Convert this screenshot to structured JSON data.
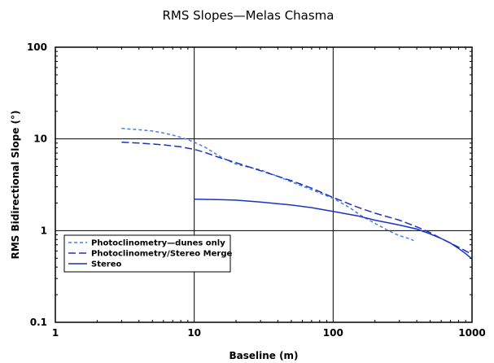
{
  "chart_data": {
    "type": "line",
    "title": "RMS Slopes—Melas Chasma",
    "xlabel": "Baseline (m)",
    "ylabel": "RMS Bidirectional Slope (°)",
    "xscale": "log",
    "yscale": "log",
    "xlim": [
      1,
      1000
    ],
    "ylim": [
      0.1,
      100
    ],
    "xticks": [
      "1",
      "10",
      "100",
      "1000"
    ],
    "yticks": [
      "0.1",
      "1",
      "10",
      "100"
    ],
    "grid": true,
    "legend_position": "lower-left",
    "series": [
      {
        "name": "Photoclinometry—dunes only",
        "color": "#4a7fe6",
        "style": "dotted-dash",
        "x": [
          3,
          4,
          5,
          6,
          7,
          8,
          9,
          10,
          12,
          14,
          16,
          20,
          25,
          30,
          40,
          50,
          70,
          100,
          130,
          160,
          200,
          250,
          300,
          350,
          380
        ],
        "y": [
          13,
          12.6,
          12.2,
          11.6,
          11,
          10.4,
          9.8,
          9.2,
          8.1,
          7,
          6.2,
          5.3,
          4.9,
          4.6,
          3.9,
          3.4,
          2.8,
          2.25,
          1.8,
          1.45,
          1.2,
          1.0,
          0.88,
          0.82,
          0.78
        ]
      },
      {
        "name": "Photoclinometry/Stereo Merge",
        "color": "#1a33c4",
        "style": "dash",
        "x": [
          3,
          4,
          5,
          6,
          8,
          10,
          12,
          15,
          20,
          30,
          40,
          50,
          70,
          100,
          150,
          200,
          300,
          400,
          500,
          600,
          800,
          1000
        ],
        "y": [
          9.2,
          9.0,
          8.8,
          8.6,
          8.2,
          7.7,
          7.1,
          6.3,
          5.5,
          4.5,
          3.9,
          3.5,
          2.9,
          2.3,
          1.8,
          1.55,
          1.3,
          1.1,
          0.95,
          0.82,
          0.66,
          0.55
        ]
      },
      {
        "name": "Stereo",
        "color": "#1a33c4",
        "style": "solid",
        "x": [
          10,
          15,
          20,
          30,
          50,
          70,
          100,
          150,
          200,
          300,
          400,
          500,
          600,
          700,
          800,
          900,
          1000
        ],
        "y": [
          2.2,
          2.18,
          2.15,
          2.05,
          1.9,
          1.78,
          1.62,
          1.45,
          1.3,
          1.15,
          1.04,
          0.92,
          0.82,
          0.73,
          0.64,
          0.56,
          0.49
        ]
      }
    ]
  }
}
